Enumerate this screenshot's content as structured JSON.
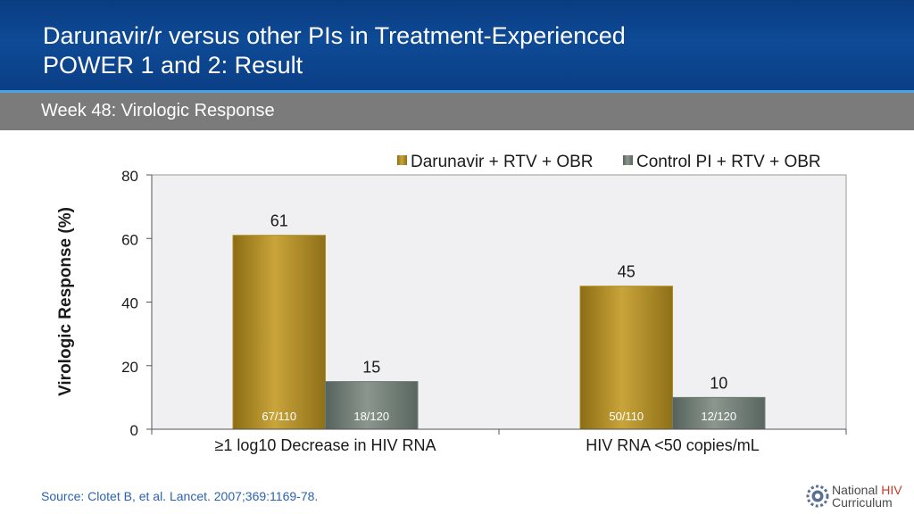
{
  "header": {
    "title_line1": "Darunavir/r versus other PIs in Treatment-Experienced",
    "title_line2": "POWER 1 and 2: Result",
    "subtitle": "Week 48: Virologic Response"
  },
  "footer": {
    "source": "Source: Clotet B, et al. Lancet. 2007;369:1169-78.",
    "logo_line1_a": "National ",
    "logo_line1_b": "HIV",
    "logo_line2": "Curriculum"
  },
  "colors": {
    "series1": "#b08c25",
    "series2": "#6f7c74",
    "plot_bg": "#f0f0f2",
    "header_bg": "#0e4a96"
  },
  "chart_data": {
    "type": "bar",
    "categories": [
      "≥1 log10 Decrease in HIV RNA",
      "HIV RNA <50 copies/mL"
    ],
    "series": [
      {
        "name": "Darunavir + RTV + OBR",
        "values": [
          61,
          45
        ],
        "fractions": [
          "67/110",
          "50/110"
        ]
      },
      {
        "name": "Control PI + RTV + OBR",
        "values": [
          15,
          10
        ],
        "fractions": [
          "18/120",
          "12/120"
        ]
      }
    ],
    "ylabel": "Virologic Response (%)",
    "ylim": [
      0,
      80
    ],
    "yticks": [
      0,
      20,
      40,
      60,
      80
    ],
    "legend": "top-right",
    "grid": false
  }
}
